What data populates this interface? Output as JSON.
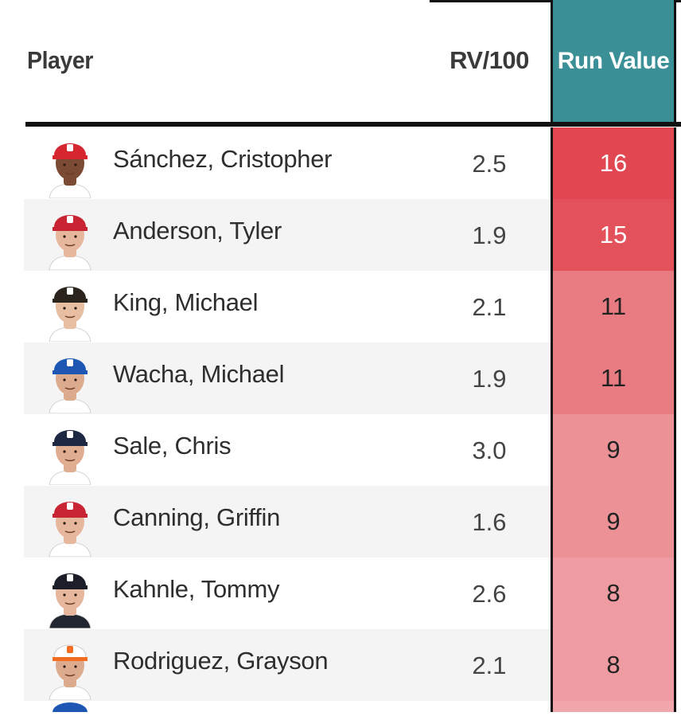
{
  "header": {
    "player": "Player",
    "rv100": "RV/100",
    "run_value": "Run Value"
  },
  "colors": {
    "header_accent": "#3a9096",
    "run_value_high": "#e04750",
    "run_value_mid": "#e87880",
    "run_value_low": "#ee9ca1",
    "text_light": "#ffffff",
    "text_dark": "#222222"
  },
  "rows": [
    {
      "name": "Sánchez, Cristopher",
      "rv100": "2.5",
      "run_value": "16",
      "team_icon": "phillies-cap-icon",
      "cap": "#d6262f",
      "skin": "#7a4b32",
      "jersey": "#ffffff",
      "cell": "#e04750",
      "cell_text": "#ffffff"
    },
    {
      "name": "Anderson, Tyler",
      "rv100": "1.9",
      "run_value": "15",
      "team_icon": "angels-cap-icon",
      "cap": "#c82434",
      "skin": "#e6b79c",
      "jersey": "#ffffff",
      "cell": "#e3525a",
      "cell_text": "#ffffff"
    },
    {
      "name": "King, Michael",
      "rv100": "2.1",
      "run_value": "11",
      "team_icon": "padres-cap-icon",
      "cap": "#2b241c",
      "skin": "#e8bea2",
      "jersey": "#ffffff",
      "cell": "#e97b82",
      "cell_text": "#222222"
    },
    {
      "name": "Wacha, Michael",
      "rv100": "1.9",
      "run_value": "11",
      "team_icon": "royals-cap-icon",
      "cap": "#1d56b3",
      "skin": "#dcab8e",
      "jersey": "#ffffff",
      "cell": "#e97b82",
      "cell_text": "#222222"
    },
    {
      "name": "Sale, Chris",
      "rv100": "3.0",
      "run_value": "9",
      "team_icon": "braves-cap-icon",
      "cap": "#1f2842",
      "skin": "#e0ad90",
      "jersey": "#ffffff",
      "cell": "#ec9196",
      "cell_text": "#222222"
    },
    {
      "name": "Canning, Griffin",
      "rv100": "1.6",
      "run_value": "9",
      "team_icon": "angels-cap-icon",
      "cap": "#c82434",
      "skin": "#e6b79c",
      "jersey": "#ffffff",
      "cell": "#ec9196",
      "cell_text": "#222222"
    },
    {
      "name": "Kahnle, Tommy",
      "rv100": "2.6",
      "run_value": "8",
      "team_icon": "yankees-cap-icon",
      "cap": "#1c1f2a",
      "skin": "#e6b79c",
      "jersey": "#222630",
      "cell": "#ee9ca1",
      "cell_text": "#222222"
    },
    {
      "name": "Rodriguez, Grayson",
      "rv100": "2.1",
      "run_value": "8",
      "team_icon": "orioles-cap-icon",
      "cap": "#ffffff",
      "skin": "#dcab8e",
      "jersey": "#ffffff",
      "cell": "#ee9ca1",
      "cell_text": "#222222"
    }
  ]
}
